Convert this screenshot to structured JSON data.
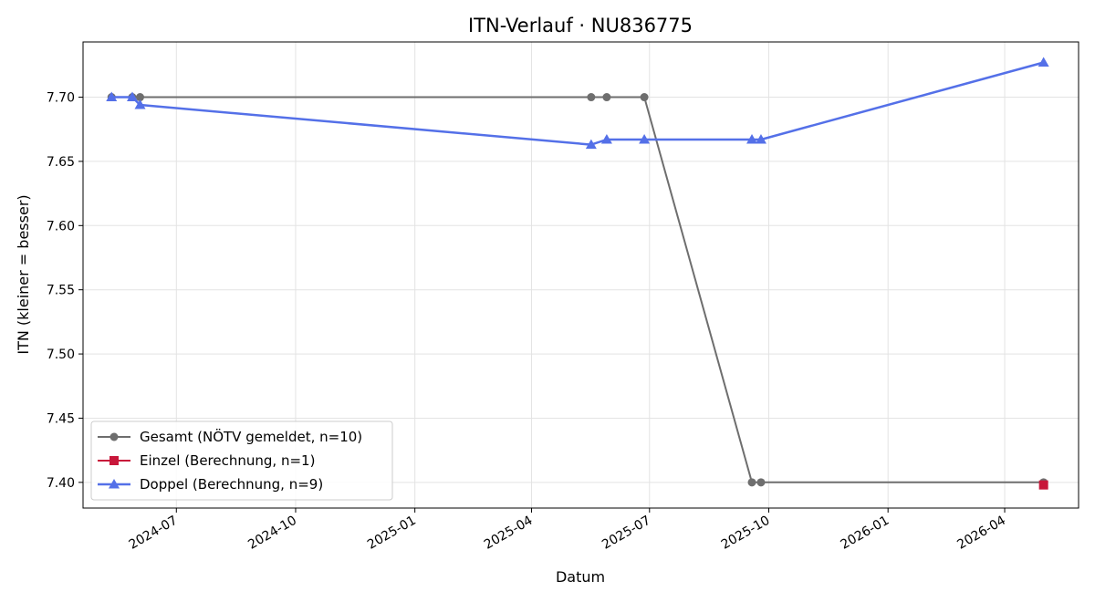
{
  "chart_data": {
    "type": "line",
    "title": "ITN-Verlauf · NU836775",
    "xlabel": "Datum",
    "ylabel": "ITN  (kleiner = besser)",
    "x_ticks": [
      "2024-07",
      "2024-10",
      "2025-01",
      "2025-04",
      "2025-07",
      "2025-10",
      "2026-01",
      "2026-04"
    ],
    "y_ticks": [
      "7.40",
      "7.45",
      "7.50",
      "7.55",
      "7.60",
      "7.65",
      "7.70"
    ],
    "xlim": [
      "2024-04-20",
      "2026-05-28"
    ],
    "ylim": [
      7.38,
      7.743
    ],
    "grid": true,
    "legend_position": "lower-left",
    "series": [
      {
        "name": "Gesamt (NÖTV gemeldet, n=10)",
        "color": "#6e6e6e",
        "marker": "circle",
        "points": [
          {
            "x": "2024-05-12",
            "y": 7.7
          },
          {
            "x": "2024-05-28",
            "y": 7.7
          },
          {
            "x": "2024-06-03",
            "y": 7.7
          },
          {
            "x": "2025-05-17",
            "y": 7.7
          },
          {
            "x": "2025-05-29",
            "y": 7.7
          },
          {
            "x": "2025-06-27",
            "y": 7.7
          },
          {
            "x": "2025-09-18",
            "y": 7.4
          },
          {
            "x": "2025-09-25",
            "y": 7.4
          },
          {
            "x": "2026-05-01",
            "y": 7.4
          }
        ]
      },
      {
        "name": "Einzel (Berechnung, n=1)",
        "color": "#c8173a",
        "marker": "square",
        "points": [
          {
            "x": "2026-05-01",
            "y": 7.398
          }
        ]
      },
      {
        "name": "Doppel (Berechnung, n=9)",
        "color": "#5470e8",
        "marker": "triangle",
        "points": [
          {
            "x": "2024-05-12",
            "y": 7.7
          },
          {
            "x": "2024-05-28",
            "y": 7.7
          },
          {
            "x": "2024-06-03",
            "y": 7.694
          },
          {
            "x": "2025-05-17",
            "y": 7.663
          },
          {
            "x": "2025-05-29",
            "y": 7.667
          },
          {
            "x": "2025-06-27",
            "y": 7.667
          },
          {
            "x": "2025-09-18",
            "y": 7.667
          },
          {
            "x": "2025-09-25",
            "y": 7.667
          },
          {
            "x": "2026-05-01",
            "y": 7.727
          }
        ]
      }
    ]
  }
}
